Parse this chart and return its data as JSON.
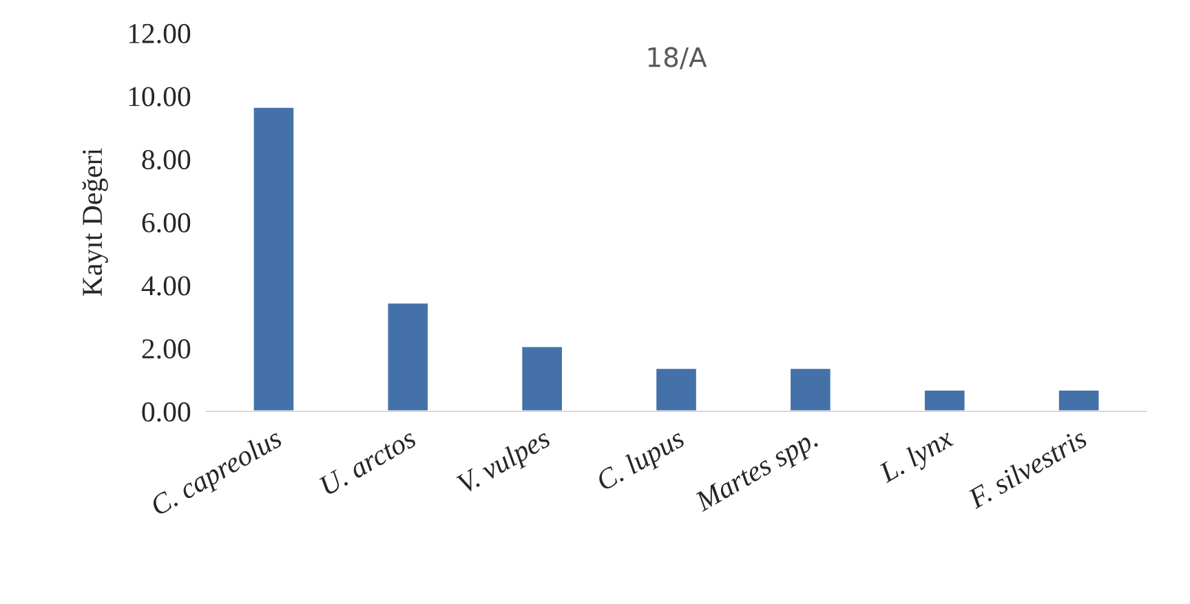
{
  "chart_data": {
    "type": "bar",
    "title": "18/A",
    "ylabel": "Kayıt Değeri",
    "categories": [
      "C. capreolus",
      "U. arctos",
      "V. vulpes",
      "C. lupus",
      "Martes spp.",
      "L. lynx",
      "F. silvestris"
    ],
    "values": [
      9.66,
      3.45,
      2.07,
      1.38,
      1.38,
      0.69,
      0.69
    ],
    "color": "#4472a8",
    "ylim": [
      0,
      12
    ],
    "yticks": [
      {
        "value": 0,
        "label": "0.00"
      },
      {
        "value": 2,
        "label": "2.00"
      },
      {
        "value": 4,
        "label": "4.00"
      },
      {
        "value": 6,
        "label": "6.00"
      },
      {
        "value": 8,
        "label": "8.00"
      },
      {
        "value": 10,
        "label": "10.00"
      },
      {
        "value": 12,
        "label": "12.00"
      }
    ],
    "grid": false,
    "legend": false
  }
}
